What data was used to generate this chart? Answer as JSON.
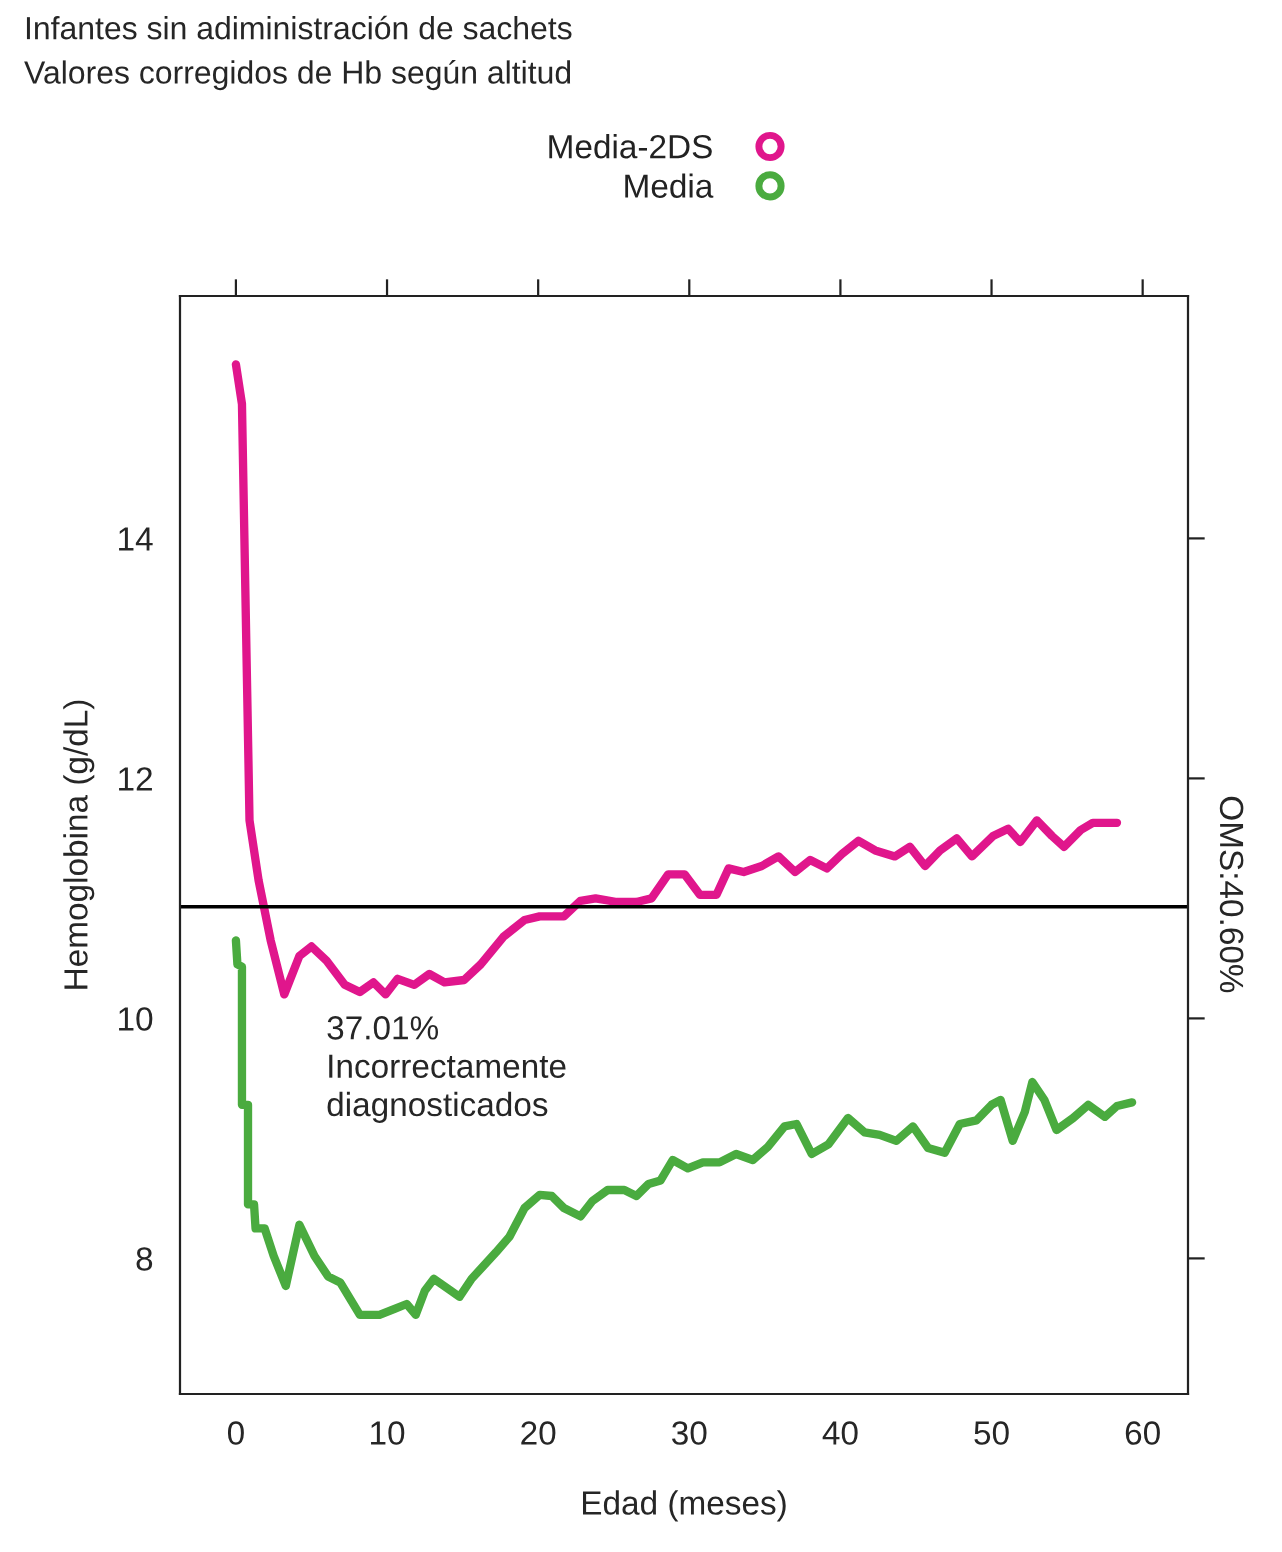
{
  "chart_data": {
    "type": "line",
    "title": "Infantes sin adiministración de sachets",
    "subtitle": "Valores corregidos de Hb según altitud",
    "xlabel": "Edad (meses)",
    "ylabel": "Hemoglobina (g/dL)",
    "xlim": [
      -3.7,
      63.0
    ],
    "ylim": [
      6.87,
      16.02
    ],
    "xticks": [
      0,
      10,
      20,
      30,
      40,
      50,
      60
    ],
    "yticks": [
      8,
      10,
      12,
      14
    ],
    "grid": false,
    "legend": "top",
    "marker": "none",
    "line_style": "solid",
    "ref_lines": [
      {
        "axis": "y",
        "value": 10.93,
        "color": "#000000"
      }
    ],
    "annotations": [
      "37.01%\nIncorrectamente\ndiagnosticados",
      "OMS:40.60%"
    ],
    "series": [
      {
        "name": "Media-2DS",
        "color": "#e0168c",
        "x": [
          0,
          0.4,
          0.9,
          1.5,
          2.3,
          3.2,
          4.2,
          5,
          6,
          7.2,
          8.2,
          9.1,
          9.9,
          10.7,
          11.8,
          12.8,
          13.8,
          15.1,
          16.2,
          17.7,
          19.1,
          20.1,
          21.7,
          22.8,
          23.8,
          25.2,
          26.5,
          27.5,
          28.6,
          29.7,
          30.7,
          31.8,
          32.6,
          33.6,
          34.8,
          35.9,
          37,
          38,
          39.1,
          40.1,
          41.2,
          42.3,
          43.6,
          44.6,
          45.6,
          46.6,
          47.7,
          48.7,
          50.1,
          51.1,
          51.9,
          53,
          54,
          54.8,
          55.9,
          56.7,
          58.3
        ],
        "values": [
          15.45,
          15.12,
          11.65,
          11.15,
          10.65,
          10.2,
          10.52,
          10.6,
          10.48,
          10.28,
          10.22,
          10.3,
          10.2,
          10.33,
          10.28,
          10.37,
          10.3,
          10.32,
          10.45,
          10.68,
          10.82,
          10.85,
          10.85,
          10.98,
          11.0,
          10.97,
          10.97,
          11.0,
          11.2,
          11.2,
          11.03,
          11.03,
          11.25,
          11.22,
          11.27,
          11.35,
          11.22,
          11.32,
          11.25,
          11.37,
          11.48,
          11.4,
          11.35,
          11.43,
          11.27,
          11.4,
          11.5,
          11.35,
          11.52,
          11.58,
          11.47,
          11.65,
          11.52,
          11.43,
          11.57,
          11.63,
          11.63
        ]
      },
      {
        "name": "Media",
        "color": "#4aab3f",
        "x": [
          0,
          0.1,
          0.4,
          0.4,
          0.8,
          0.8,
          1.2,
          1.3,
          1.9,
          2.5,
          3.3,
          4.2,
          5.2,
          6.1,
          6.9,
          8.2,
          9.5,
          10.5,
          11.3,
          11.9,
          12.5,
          13.1,
          14,
          14.8,
          15.6,
          17.2,
          18.1,
          19.1,
          20.1,
          20.9,
          21.7,
          22.8,
          23.6,
          24.6,
          25.7,
          26.5,
          27.3,
          28.1,
          28.9,
          29.9,
          30.9,
          32,
          33.1,
          34.2,
          35.2,
          36.3,
          37.1,
          38.1,
          39.2,
          40.5,
          41.6,
          42.6,
          43.7,
          44.8,
          45.8,
          46.9,
          47.9,
          49,
          50,
          50.6,
          51.4,
          52.2,
          52.7,
          53.5,
          54.3,
          55.4,
          56.4,
          57.5,
          58.3,
          59.3
        ],
        "values": [
          10.65,
          10.45,
          10.43,
          9.28,
          9.28,
          8.45,
          8.45,
          8.25,
          8.25,
          8.02,
          7.77,
          8.28,
          8.02,
          7.85,
          7.8,
          7.53,
          7.53,
          7.58,
          7.62,
          7.53,
          7.73,
          7.83,
          7.75,
          7.68,
          7.83,
          8.05,
          8.18,
          8.42,
          8.53,
          8.52,
          8.42,
          8.35,
          8.48,
          8.57,
          8.57,
          8.52,
          8.62,
          8.65,
          8.82,
          8.75,
          8.8,
          8.8,
          8.87,
          8.82,
          8.93,
          9.1,
          9.12,
          8.87,
          8.95,
          9.17,
          9.05,
          9.03,
          8.98,
          9.1,
          8.92,
          8.88,
          9.12,
          9.15,
          9.28,
          9.32,
          8.98,
          9.22,
          9.47,
          9.32,
          9.07,
          9.17,
          9.28,
          9.18,
          9.27,
          9.3
        ]
      }
    ]
  }
}
